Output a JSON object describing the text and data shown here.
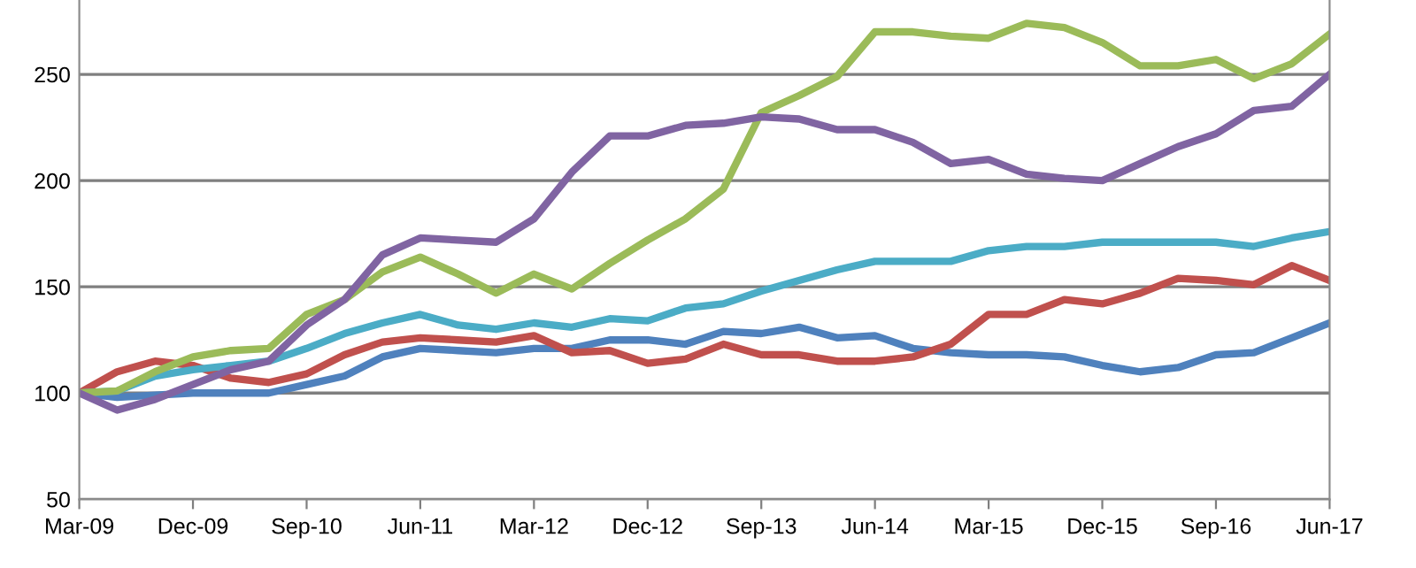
{
  "chart_data": {
    "type": "line",
    "categories": [
      "Mar-09",
      null,
      null,
      "Dec-09",
      null,
      null,
      "Sep-10",
      null,
      null,
      "Jun-11",
      null,
      null,
      "Mar-12",
      null,
      null,
      "Dec-12",
      null,
      null,
      "Sep-13",
      null,
      null,
      "Jun-14",
      null,
      null,
      "Mar-15",
      null,
      null,
      "Dec-15",
      null,
      null,
      "Sep-16",
      null,
      null,
      "Jun-17"
    ],
    "series": [
      {
        "color": "#4f81bd",
        "values": [
          100,
          98,
          99,
          100,
          100,
          100,
          104,
          108,
          117,
          121,
          120,
          119,
          121,
          121,
          125,
          125,
          123,
          129,
          128,
          131,
          126,
          127,
          121,
          119,
          118,
          118,
          117,
          113,
          110,
          112,
          118,
          119,
          126,
          133
        ]
      },
      {
        "color": "#c0504d",
        "values": [
          100,
          110,
          115,
          113,
          107,
          105,
          109,
          118,
          124,
          126,
          125,
          124,
          127,
          119,
          120,
          114,
          116,
          123,
          118,
          118,
          115,
          115,
          117,
          123,
          137,
          137,
          144,
          142,
          147,
          154,
          153,
          151,
          160,
          153
        ]
      },
      {
        "color": "#4bacc6",
        "values": [
          100,
          101,
          108,
          111,
          113,
          115,
          121,
          128,
          133,
          137,
          132,
          130,
          133,
          131,
          135,
          134,
          140,
          142,
          148,
          153,
          158,
          162,
          162,
          162,
          167,
          169,
          169,
          171,
          171,
          171,
          171,
          169,
          173,
          176
        ]
      },
      {
        "color": "#9bbb59",
        "values": [
          100,
          101,
          110,
          117,
          120,
          121,
          137,
          144,
          157,
          164,
          156,
          147,
          156,
          149,
          161,
          172,
          182,
          196,
          232,
          240,
          249,
          270,
          270,
          268,
          267,
          274,
          272,
          265,
          254,
          254,
          257,
          248,
          255,
          269
        ]
      },
      {
        "color": "#8064a2",
        "values": [
          100,
          92,
          97,
          104,
          111,
          115,
          132,
          144,
          165,
          173,
          172,
          171,
          182,
          204,
          221,
          221,
          226,
          227,
          230,
          229,
          224,
          224,
          218,
          208,
          210,
          203,
          201,
          200,
          208,
          216,
          222,
          233,
          235,
          250
        ]
      }
    ],
    "ylim": [
      50,
      285
    ],
    "yticks": [
      50,
      100,
      150,
      200,
      250
    ],
    "grid": "y",
    "marker": "none",
    "line_style": "solid"
  }
}
